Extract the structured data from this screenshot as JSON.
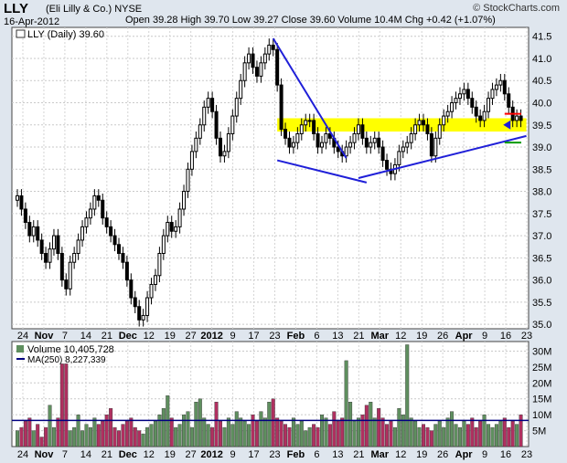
{
  "header": {
    "symbol": "LLY",
    "company": "(Eli Lilly & Co.)",
    "exchange": "NYSE",
    "date": "16-Apr-2012",
    "brand": "© StockCharts.com",
    "quote": "Open 39.28  High 39.70  Low 39.27  Close 39.60  Volume 10.4M  Chg +0.42 (+1.07%)"
  },
  "price_legend": "LLY (Daily) 39.60",
  "volume_legend": "Volume 10,405,728",
  "ma_legend": "MA(250) 8,227,339",
  "colors": {
    "up": "#000000",
    "down": "#000000",
    "trend": "#1f1fd8",
    "zone": "#ffff00",
    "res": "#ff0000",
    "sup": "#009900",
    "vol_up": "#5f8f5f",
    "vol_down": "#b03060",
    "ma": "#000080"
  },
  "chart_data": [
    {
      "type": "candlestick",
      "title": "LLY (Daily) 39.60",
      "ylim": [
        34.9,
        41.7
      ],
      "y_ticks": [
        35.0,
        35.5,
        36.0,
        36.5,
        37.0,
        37.5,
        38.0,
        38.5,
        39.0,
        39.5,
        40.0,
        40.5,
        41.0,
        41.5
      ],
      "x_labels": [
        "24",
        "Nov",
        "7",
        "14",
        "21",
        "Dec",
        "12",
        "19",
        "27",
        "2012",
        "9",
        "17",
        "23",
        "Feb",
        "6",
        "13",
        "21",
        "Mar",
        "12",
        "19",
        "26",
        "Apr",
        "9",
        "16",
        "23"
      ],
      "close": [
        37.9,
        37.6,
        37.3,
        37.0,
        37.2,
        36.9,
        36.6,
        36.4,
        36.7,
        37.0,
        36.6,
        36.0,
        35.8,
        36.4,
        36.6,
        36.9,
        37.2,
        37.4,
        37.6,
        37.9,
        37.8,
        37.4,
        37.2,
        37.0,
        36.8,
        36.6,
        36.4,
        36.0,
        35.6,
        35.4,
        35.1,
        35.2,
        35.6,
        35.9,
        36.1,
        36.6,
        37.0,
        37.3,
        37.1,
        37.2,
        37.6,
        38.0,
        38.5,
        38.9,
        39.2,
        39.5,
        39.9,
        40.1,
        39.8,
        39.2,
        38.8,
        38.9,
        39.3,
        39.7,
        40.1,
        40.5,
        40.9,
        41.1,
        40.8,
        40.6,
        40.9,
        41.1,
        41.3,
        41.2,
        40.4,
        39.4,
        39.2,
        39.0,
        39.1,
        39.3,
        39.5,
        39.6,
        39.6,
        39.3,
        39.0,
        39.1,
        39.3,
        39.2,
        39.0,
        38.9,
        38.8,
        39.0,
        39.1,
        39.3,
        39.5,
        39.2,
        39.0,
        39.1,
        39.2,
        39.0,
        38.7,
        38.5,
        38.4,
        38.6,
        38.9,
        39.0,
        39.1,
        39.3,
        39.5,
        39.6,
        39.5,
        39.3,
        38.8,
        39.2,
        39.5,
        39.7,
        39.8,
        40.0,
        40.1,
        40.2,
        40.3,
        40.1,
        39.9,
        39.7,
        39.6,
        39.8,
        40.1,
        40.3,
        40.4,
        40.5,
        40.2,
        39.9,
        39.6,
        39.7,
        39.6
      ]
    },
    {
      "type": "bar",
      "title": "Volume 10,405,728",
      "ylim": [
        0,
        33
      ],
      "y_tick_labels": [
        "5M",
        "10M",
        "15M",
        "20M",
        "25M",
        "30M"
      ],
      "y_tick_values": [
        5,
        10,
        15,
        20,
        25,
        30
      ],
      "ma_value": 8.23,
      "values": [
        5,
        6,
        8,
        9,
        5,
        7,
        3,
        6,
        13,
        6,
        9,
        26,
        26,
        5,
        6,
        10,
        5,
        7,
        6,
        9,
        7,
        8,
        10,
        12,
        6,
        5,
        7,
        8,
        9,
        6,
        5,
        4,
        6,
        7,
        8,
        10,
        12,
        16,
        9,
        6,
        7,
        10,
        11,
        6,
        14,
        15,
        9,
        7,
        6,
        14,
        8,
        6,
        9,
        7,
        11,
        9,
        8,
        7,
        10,
        8,
        11,
        9,
        14,
        15,
        9,
        8,
        7,
        6,
        9,
        7,
        8,
        5,
        6,
        7,
        6,
        10,
        9,
        7,
        11,
        8,
        9,
        27,
        14,
        8,
        9,
        10,
        13,
        14,
        9,
        12,
        9,
        7,
        8,
        6,
        12,
        10,
        32,
        9,
        8,
        6,
        7,
        6,
        5,
        7,
        8,
        6,
        9,
        11,
        7,
        6,
        8,
        7,
        9,
        6,
        8,
        10,
        7,
        6,
        7,
        8,
        9,
        6,
        8,
        7,
        10
      ]
    }
  ]
}
